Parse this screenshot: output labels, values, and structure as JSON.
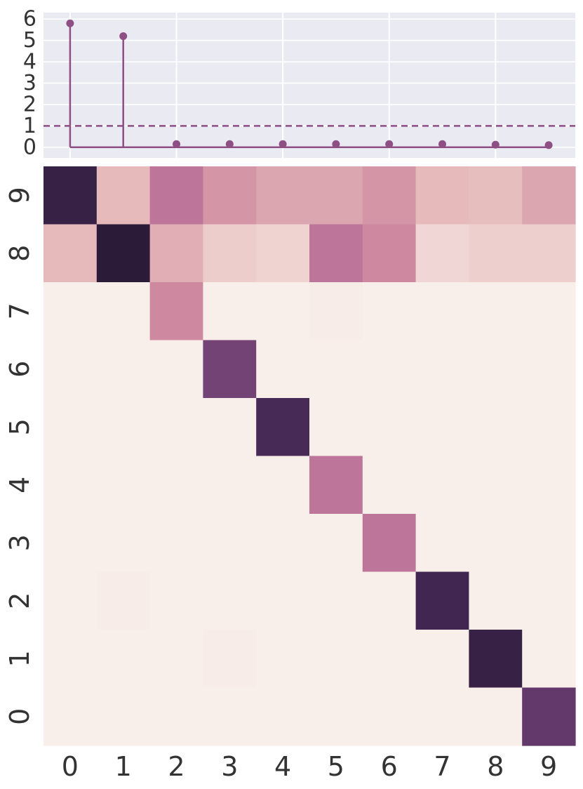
{
  "colors": {
    "stem": "#8E4F85",
    "panel_bg": "#EAEAF2",
    "grid": "#FFFFFF",
    "heat_low": "#F8EEEA",
    "heat_high": "#2C1B38"
  },
  "chart_data": [
    {
      "type": "stem",
      "x": [
        0,
        1,
        2,
        3,
        4,
        5,
        6,
        7,
        8,
        9
      ],
      "values": [
        5.8,
        5.2,
        0.15,
        0.15,
        0.15,
        0.15,
        0.15,
        0.15,
        0.12,
        0.1
      ],
      "threshold": 1,
      "ylim": [
        -0.5,
        6.3
      ],
      "yticks": [
        0,
        1,
        2,
        3,
        4,
        5,
        6
      ],
      "ytick_labels": [
        "0",
        "1",
        "2",
        "3",
        "4",
        "5",
        "6"
      ],
      "grid": true
    },
    {
      "type": "heatmap",
      "x_labels": [
        "0",
        "1",
        "2",
        "3",
        "4",
        "5",
        "6",
        "7",
        "8",
        "9"
      ],
      "y_labels": [
        "9",
        "8",
        "7",
        "6",
        "5",
        "4",
        "3",
        "2",
        "1",
        "0"
      ],
      "value_range": [
        0,
        1
      ],
      "values": [
        [
          0.95,
          0.25,
          0.55,
          0.4,
          0.33,
          0.33,
          0.4,
          0.25,
          0.23,
          0.33
        ],
        [
          0.25,
          1.0,
          0.3,
          0.16,
          0.13,
          0.55,
          0.45,
          0.11,
          0.15,
          0.15
        ],
        [
          0.0,
          0.0,
          0.45,
          0.0,
          0.0,
          0.01,
          0.0,
          0.0,
          0.0,
          0.0
        ],
        [
          0.0,
          0.0,
          0.0,
          0.75,
          0.0,
          0.0,
          0.0,
          0.0,
          0.0,
          0.0
        ],
        [
          0.0,
          0.0,
          0.0,
          0.0,
          0.88,
          0.0,
          0.0,
          0.0,
          0.0,
          0.0
        ],
        [
          0.0,
          0.0,
          0.0,
          0.0,
          0.0,
          0.55,
          0.0,
          0.0,
          0.0,
          0.0
        ],
        [
          0.0,
          0.0,
          0.0,
          0.0,
          0.0,
          0.0,
          0.55,
          0.0,
          0.0,
          0.0
        ],
        [
          0.0,
          0.01,
          0.0,
          0.0,
          0.0,
          0.0,
          0.0,
          0.9,
          0.0,
          0.0
        ],
        [
          0.0,
          0.0,
          0.0,
          0.01,
          0.0,
          0.0,
          0.0,
          0.0,
          0.95,
          0.0
        ],
        [
          0.0,
          0.0,
          0.0,
          0.0,
          0.0,
          0.0,
          0.0,
          0.0,
          0.0,
          0.8
        ]
      ]
    }
  ]
}
